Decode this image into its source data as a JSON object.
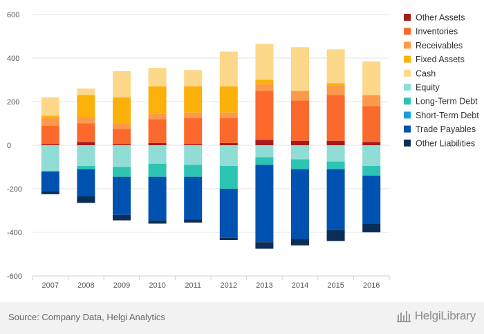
{
  "chart_data": {
    "type": "bar",
    "stacked": true,
    "categories": [
      "2007",
      "2008",
      "2009",
      "2010",
      "2011",
      "2012",
      "2013",
      "2014",
      "2015",
      "2016"
    ],
    "ylim": [
      -600,
      600
    ],
    "yticks": [
      600,
      400,
      200,
      0,
      -200,
      -400,
      -600
    ],
    "grid": true,
    "legend_position": "right",
    "series": [
      {
        "name": "Other Assets",
        "color": "#a61c1c",
        "values": [
          5,
          15,
          5,
          10,
          5,
          10,
          25,
          20,
          20,
          15
        ]
      },
      {
        "name": "Inventories",
        "color": "#fb6a2c",
        "values": [
          85,
          85,
          70,
          110,
          120,
          115,
          225,
          185,
          210,
          165
        ]
      },
      {
        "name": "Receivables",
        "color": "#fc9a4c",
        "values": [
          35,
          30,
          25,
          25,
          25,
          25,
          30,
          45,
          45,
          50
        ]
      },
      {
        "name": "Fixed Assets",
        "color": "#fbb10a",
        "values": [
          10,
          100,
          120,
          125,
          120,
          120,
          20,
          0,
          10,
          0
        ]
      },
      {
        "name": "Cash",
        "color": "#fdd78a",
        "values": [
          85,
          30,
          120,
          85,
          75,
          160,
          165,
          200,
          155,
          155
        ]
      },
      {
        "name": "Equity",
        "color": "#8fddd5",
        "values": [
          -120,
          -95,
          -100,
          -85,
          -90,
          -95,
          -55,
          -65,
          -75,
          -95
        ]
      },
      {
        "name": "Long-Term Debt",
        "color": "#2ec4b4",
        "values": [
          0,
          -15,
          -45,
          -60,
          -55,
          -105,
          -35,
          -45,
          -35,
          -45
        ]
      },
      {
        "name": "Short-Term Debt",
        "color": "#1aa0d8",
        "values": [
          0,
          0,
          0,
          0,
          0,
          0,
          0,
          0,
          0,
          0
        ]
      },
      {
        "name": "Trade Payables",
        "color": "#0052b0",
        "values": [
          -90,
          -125,
          -175,
          -200,
          -195,
          -225,
          -355,
          -320,
          -280,
          -220
        ]
      },
      {
        "name": "Other Liabilities",
        "color": "#0a2e57",
        "values": [
          -15,
          -30,
          -25,
          -15,
          -15,
          -10,
          -30,
          -30,
          -50,
          -40
        ]
      }
    ]
  },
  "footer": {
    "source": "Source: Company Data, Helgi Analytics",
    "logo_text": "HelgiLibrary"
  }
}
